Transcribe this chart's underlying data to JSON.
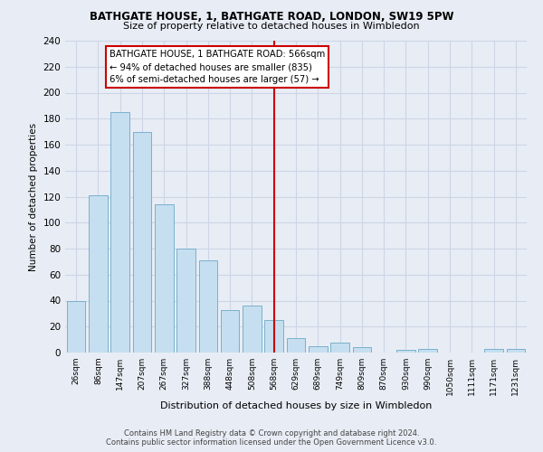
{
  "title": "BATHGATE HOUSE, 1, BATHGATE ROAD, LONDON, SW19 5PW",
  "subtitle": "Size of property relative to detached houses in Wimbledon",
  "xlabel": "Distribution of detached houses by size in Wimbledon",
  "ylabel": "Number of detached properties",
  "footer_line1": "Contains HM Land Registry data © Crown copyright and database right 2024.",
  "footer_line2": "Contains public sector information licensed under the Open Government Licence v3.0.",
  "categories": [
    "26sqm",
    "86sqm",
    "147sqm",
    "207sqm",
    "267sqm",
    "327sqm",
    "388sqm",
    "448sqm",
    "508sqm",
    "568sqm",
    "629sqm",
    "689sqm",
    "749sqm",
    "809sqm",
    "870sqm",
    "930sqm",
    "990sqm",
    "1050sqm",
    "1111sqm",
    "1171sqm",
    "1231sqm"
  ],
  "values": [
    40,
    121,
    185,
    170,
    114,
    80,
    71,
    33,
    36,
    25,
    11,
    5,
    8,
    4,
    0,
    2,
    3,
    0,
    0,
    3,
    3
  ],
  "bar_color": "#c5dff0",
  "bar_edge_color": "#7ab0cc",
  "grid_color": "#cdd5e5",
  "background_color": "#e8edf5",
  "vline_color": "#cc0000",
  "annotation_text": "BATHGATE HOUSE, 1 BATHGATE ROAD: 566sqm\n← 94% of detached houses are smaller (835)\n6% of semi-detached houses are larger (57) →",
  "annotation_box_color": "#ffffff",
  "annotation_box_edge": "#cc0000",
  "ylim": [
    0,
    240
  ],
  "yticks": [
    0,
    20,
    40,
    60,
    80,
    100,
    120,
    140,
    160,
    180,
    200,
    220,
    240
  ]
}
